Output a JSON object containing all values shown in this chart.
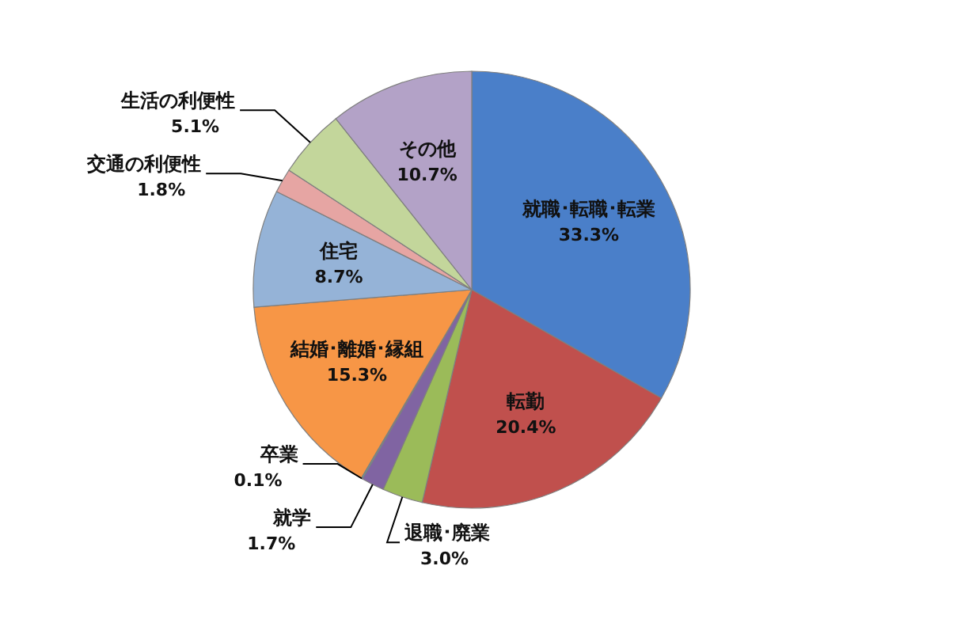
{
  "chart_data": {
    "type": "pie",
    "categories": [
      "就職･転職･転業",
      "転勤",
      "退職･廃業",
      "就学",
      "卒業",
      "結婚･離婚･縁組",
      "住宅",
      "交通の利便性",
      "生活の利便性",
      "その他"
    ],
    "values": [
      33.3,
      20.4,
      3.0,
      1.7,
      0.1,
      15.3,
      8.7,
      1.8,
      5.1,
      10.7
    ],
    "value_labels": [
      "33.3%",
      "20.4%",
      "3.0%",
      "1.7%",
      "0.1%",
      "15.3%",
      "8.7%",
      "1.8%",
      "5.1%",
      "10.7%"
    ],
    "colors": [
      "#4a7fc9",
      "#c0504d",
      "#9bbb59",
      "#8064a2",
      "#4bacc6",
      "#f79646",
      "#95b3d7",
      "#e6a5a3",
      "#c3d69b",
      "#b3a2c7"
    ]
  }
}
